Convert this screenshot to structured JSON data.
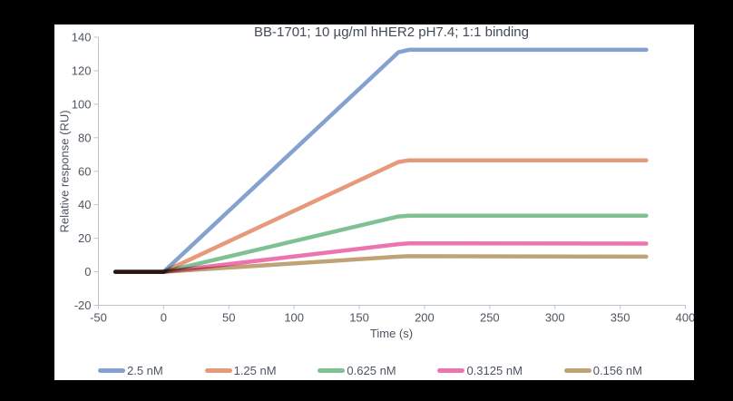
{
  "chart_data": {
    "type": "line",
    "title": "BB-1701; 10 µg/ml hHER2 pH7.4; 1:1 binding",
    "xlabel": "Time (s)",
    "ylabel": "Relative response (RU)",
    "xlim": [
      -50,
      400
    ],
    "ylim": [
      -20,
      140
    ],
    "x_ticks": [
      -50,
      0,
      50,
      100,
      150,
      200,
      250,
      300,
      350,
      400
    ],
    "y_ticks": [
      -20,
      0,
      20,
      40,
      60,
      80,
      100,
      120,
      140
    ],
    "grid": false,
    "legend_position": "bottom",
    "axis_color": "#bfc3c9",
    "text_color": "#4d5560",
    "background_color": "#ffffff",
    "outer_background": "#000000",
    "shape_note": "SPR sensorgram: flat baseline at 0 RU from -37 s to 0 s, linear association 0-180 s, flat plateau 180-370 s",
    "series": [
      {
        "name": "2.5 nM",
        "color": "#84a1d0",
        "points": [
          [
            -37,
            0
          ],
          [
            0,
            0
          ],
          [
            180,
            131.0
          ],
          [
            188,
            132.5
          ],
          [
            370,
            132.5
          ]
        ]
      },
      {
        "name": "1.25 nM",
        "color": "#e69a7b",
        "points": [
          [
            -37,
            0
          ],
          [
            0,
            0
          ],
          [
            180,
            65.5
          ],
          [
            188,
            66.5
          ],
          [
            370,
            66.5
          ]
        ]
      },
      {
        "name": "0.625 nM",
        "color": "#80c193",
        "points": [
          [
            -37,
            0
          ],
          [
            0,
            0
          ],
          [
            180,
            33.0
          ],
          [
            188,
            33.5
          ],
          [
            370,
            33.5
          ]
        ]
      },
      {
        "name": "0.3125 nM",
        "color": "#ed74af",
        "points": [
          [
            -37,
            0
          ],
          [
            0,
            0
          ],
          [
            180,
            16.5
          ],
          [
            188,
            17.0
          ],
          [
            370,
            16.8
          ]
        ]
      },
      {
        "name": "0.156 nM",
        "color": "#bfa376",
        "points": [
          [
            -37,
            0
          ],
          [
            0,
            0
          ],
          [
            180,
            9.0
          ],
          [
            188,
            9.3
          ],
          [
            370,
            9.0
          ]
        ]
      }
    ]
  }
}
